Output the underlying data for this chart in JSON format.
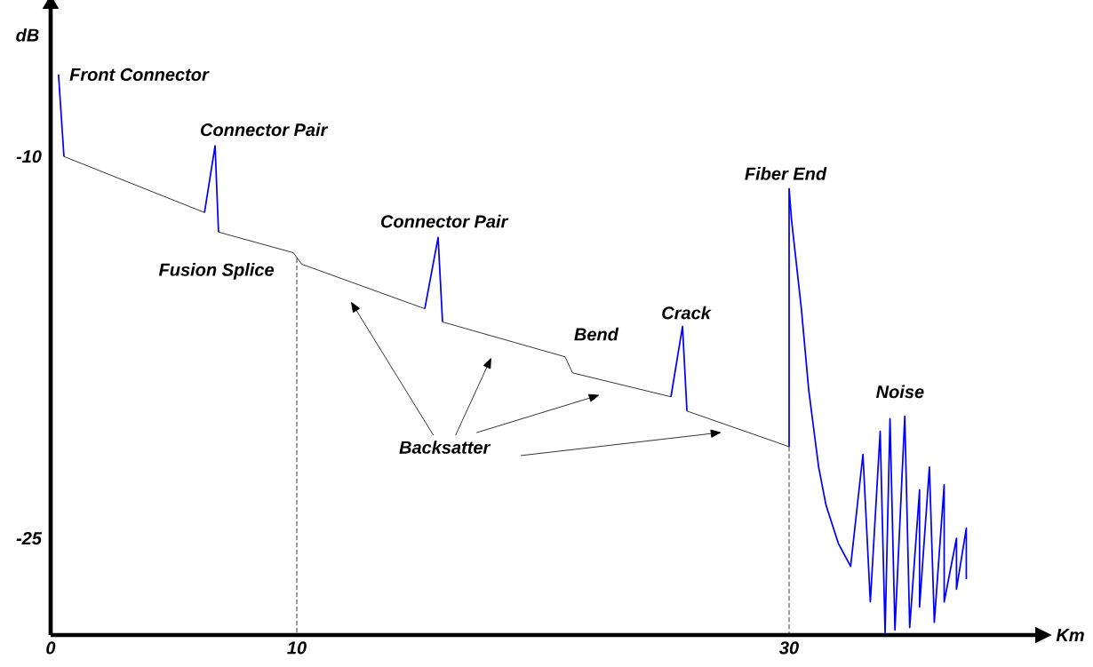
{
  "chart_data": {
    "type": "line",
    "xlabel": "Km",
    "ylabel": "dB",
    "xlim": [
      0,
      40
    ],
    "ylim": [
      -28.8,
      -4.2
    ],
    "xticks": [
      0,
      10,
      30
    ],
    "yticks": [
      -10,
      -25
    ],
    "grid": false,
    "marker": "none",
    "series": [
      {
        "color": "#000000",
        "line_style": "solid",
        "x": [
          0.54,
          6.25
        ],
        "values": [
          -10.0,
          -12.2
        ]
      },
      {
        "color": "#000000",
        "line_style": "solid",
        "x": [
          6.82,
          9.86,
          10.2,
          15.2
        ],
        "values": [
          -12.97,
          -13.78,
          -14.23,
          -15.98
        ]
      },
      {
        "color": "#000000",
        "line_style": "solid",
        "x": [
          15.92,
          20.9,
          21.2,
          25.2
        ],
        "values": [
          -16.5,
          -17.87,
          -18.5,
          -19.44
        ]
      },
      {
        "color": "#000000",
        "line_style": "solid",
        "x": [
          25.85,
          30.0
        ],
        "values": [
          -20.0,
          -21.4
        ]
      },
      {
        "color": "#0000ff",
        "line_style": "solid",
        "x": [
          0.32,
          0.54
        ],
        "values": [
          -6.78,
          -10.0
        ]
      },
      {
        "color": "#0000ff",
        "line_style": "solid",
        "x": [
          6.25,
          6.68,
          6.82
        ],
        "values": [
          -12.2,
          -9.58,
          -12.97
        ]
      },
      {
        "color": "#0000ff",
        "line_style": "solid",
        "x": [
          15.2,
          15.74,
          15.92
        ],
        "values": [
          -15.98,
          -13.18,
          -16.5
        ]
      },
      {
        "color": "#0000ff",
        "line_style": "solid",
        "x": [
          25.2,
          25.67,
          25.85
        ],
        "values": [
          -19.44,
          -16.68,
          -20.0
        ]
      },
      {
        "color": "#0000ff",
        "line_style": "solid",
        "x": [
          30.0,
          30.0,
          30.1,
          30.5,
          30.8,
          31.2,
          31.5,
          32.0,
          32.5,
          33.0,
          33.3,
          33.7,
          33.9,
          34.1,
          34.3,
          34.7,
          34.9,
          35.3,
          35.3,
          35.7,
          35.9,
          36.3,
          36.3,
          36.8,
          36.8,
          37.2,
          37.2
        ],
        "values": [
          -21.4,
          -11.26,
          -12.5,
          -16.0,
          -19.2,
          -22.2,
          -23.7,
          -25.2,
          -26.1,
          -21.7,
          -27.5,
          -20.8,
          -28.7,
          -20.3,
          -28.6,
          -20.2,
          -28.5,
          -23.1,
          -27.7,
          -22.2,
          -28.3,
          -22.9,
          -27.5,
          -25.0,
          -27.0,
          -24.6,
          -26.6
        ]
      },
      {
        "color": "#000000",
        "line_style": "dashed",
        "x": [
          10,
          10
        ],
        "values": [
          -14.0,
          -28.8
        ]
      },
      {
        "color": "#000000",
        "line_style": "dashed",
        "x": [
          30,
          30
        ],
        "values": [
          -21.4,
          -28.8
        ]
      }
    ],
    "annotations": [
      {
        "text": "Front Connector",
        "x": 0.32,
        "y": -6.78
      },
      {
        "text": "Connector Pair",
        "x": 6.68,
        "y": -9.58
      },
      {
        "text": "Fusion Splice",
        "x": 10.2,
        "y": -14.23
      },
      {
        "text": "Connector Pair",
        "x": 15.74,
        "y": -13.18
      },
      {
        "text": "Bend",
        "x": 21.2,
        "y": -18.5
      },
      {
        "text": "Crack",
        "x": 25.67,
        "y": -16.68
      },
      {
        "text": "Fiber End",
        "x": 30.0,
        "y": -11.26
      },
      {
        "text": "Noise",
        "x": 34.7,
        "y": -20.2
      },
      "Backsatter"
    ]
  }
}
